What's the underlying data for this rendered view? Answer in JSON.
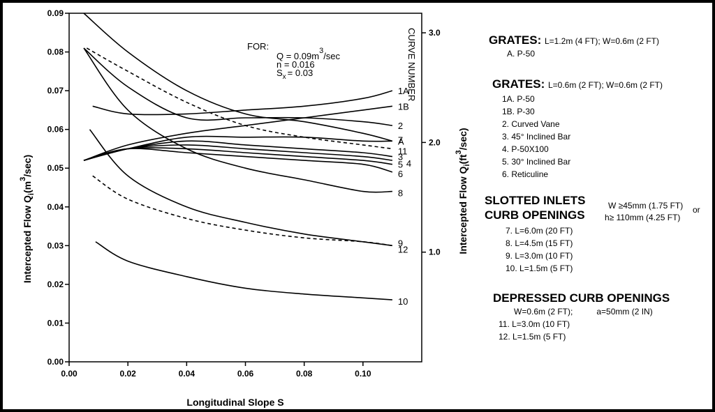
{
  "chart_data": {
    "type": "line",
    "xlabel": "Longitudinal Slope  S",
    "ylabel_left": "Intercepted Flow  Q_i (m^3/sec)",
    "ylabel_right": "Intercepted Flow  Q_i (ft^3/sec)",
    "xlim": [
      0,
      0.12
    ],
    "ylim": [
      0,
      0.09
    ],
    "x_ticks": [
      "0.00",
      "0.02",
      "0.04",
      "0.06",
      "0.08",
      "0.10"
    ],
    "y_ticks": [
      "0.00",
      "0.01",
      "0.02",
      "0.03",
      "0.04",
      "0.05",
      "0.06",
      "0.07",
      "0.08",
      "0.09"
    ],
    "y2_ticks": [
      {
        "label": "1.0",
        "value": 1.0
      },
      {
        "label": "2.0",
        "value": 2.0
      },
      {
        "label": "3.0",
        "value": 3.0
      }
    ],
    "curve_number_heading": "CURVE NUMBER",
    "for_note": {
      "heading": "FOR:",
      "q_line": "Q = 0.09m",
      "q_sup": "3",
      "q_unit": "/sec",
      "n_line": "n = 0.016",
      "s_main": "S",
      "s_sub": "x",
      "s_val": "= 0.03"
    },
    "series": [
      {
        "name": "A",
        "label": "A",
        "dashed": false,
        "x": [
          0.005,
          0.02,
          0.04,
          0.06,
          0.08,
          0.1,
          0.11
        ],
        "y": [
          0.09,
          0.08,
          0.07,
          0.064,
          0.062,
          0.059,
          0.057
        ]
      },
      {
        "name": "1A",
        "label": "1A",
        "dashed": false,
        "x": [
          0.008,
          0.02,
          0.04,
          0.06,
          0.08,
          0.1,
          0.11
        ],
        "y": [
          0.066,
          0.064,
          0.064,
          0.065,
          0.066,
          0.068,
          0.07
        ]
      },
      {
        "name": "1B",
        "label": "1B",
        "dashed": false,
        "x": [
          0.005,
          0.02,
          0.04,
          0.06,
          0.08,
          0.1,
          0.11
        ],
        "y": [
          0.052,
          0.056,
          0.059,
          0.061,
          0.063,
          0.065,
          0.066
        ]
      },
      {
        "name": "2",
        "label": "2",
        "dashed": false,
        "x": [
          0.005,
          0.02,
          0.04,
          0.06,
          0.08,
          0.1,
          0.11
        ],
        "y": [
          0.081,
          0.071,
          0.063,
          0.063,
          0.063,
          0.062,
          0.061
        ]
      },
      {
        "name": "11",
        "label": "11",
        "dashed": true,
        "x": [
          0.006,
          0.02,
          0.04,
          0.06,
          0.08,
          0.1,
          0.11
        ],
        "y": [
          0.081,
          0.075,
          0.067,
          0.061,
          0.058,
          0.056,
          0.055
        ]
      },
      {
        "name": "7",
        "label": "7",
        "dashed": false,
        "x": [
          0.005,
          0.02,
          0.04,
          0.06,
          0.08,
          0.1,
          0.11
        ],
        "y": [
          0.052,
          0.055,
          0.058,
          0.058,
          0.058,
          0.057,
          0.057
        ]
      },
      {
        "name": "3",
        "label": "3",
        "dashed": false,
        "x": [
          0.005,
          0.02,
          0.04,
          0.06,
          0.08,
          0.1,
          0.11
        ],
        "y": [
          0.052,
          0.055,
          0.057,
          0.056,
          0.055,
          0.054,
          0.053
        ]
      },
      {
        "name": "4",
        "label": "4",
        "dashed": false,
        "x": [
          0.005,
          0.02,
          0.04,
          0.06,
          0.08,
          0.1,
          0.11
        ],
        "y": [
          0.052,
          0.055,
          0.056,
          0.055,
          0.054,
          0.053,
          0.052
        ]
      },
      {
        "name": "5",
        "label": "5",
        "dashed": false,
        "x": [
          0.005,
          0.02,
          0.04,
          0.06,
          0.08,
          0.1,
          0.11
        ],
        "y": [
          0.052,
          0.055,
          0.055,
          0.054,
          0.053,
          0.052,
          0.051
        ]
      },
      {
        "name": "6",
        "label": "6",
        "dashed": false,
        "x": [
          0.005,
          0.02,
          0.04,
          0.06,
          0.08,
          0.1,
          0.11
        ],
        "y": [
          0.052,
          0.055,
          0.054,
          0.053,
          0.052,
          0.051,
          0.049
        ]
      },
      {
        "name": "8",
        "label": "8",
        "dashed": false,
        "x": [
          0.005,
          0.02,
          0.04,
          0.06,
          0.08,
          0.1,
          0.11
        ],
        "y": [
          0.081,
          0.065,
          0.055,
          0.05,
          0.047,
          0.044,
          0.044
        ]
      },
      {
        "name": "9",
        "label": "9",
        "dashed": false,
        "x": [
          0.007,
          0.02,
          0.04,
          0.06,
          0.08,
          0.1,
          0.11
        ],
        "y": [
          0.06,
          0.048,
          0.04,
          0.036,
          0.033,
          0.031,
          0.03
        ]
      },
      {
        "name": "12",
        "label": "12",
        "dashed": true,
        "x": [
          0.008,
          0.02,
          0.04,
          0.06,
          0.08,
          0.1,
          0.11
        ],
        "y": [
          0.048,
          0.042,
          0.037,
          0.034,
          0.032,
          0.031,
          0.03
        ]
      },
      {
        "name": "10",
        "label": "10",
        "dashed": false,
        "x": [
          0.009,
          0.02,
          0.04,
          0.06,
          0.08,
          0.1,
          0.11
        ],
        "y": [
          0.031,
          0.026,
          0.022,
          0.019,
          0.0175,
          0.0165,
          0.016
        ]
      }
    ]
  },
  "legend": {
    "grates1": {
      "title": "GRATES:",
      "spec": "L=1.2m (4 FT); W=0.6m (2 FT)",
      "items": [
        "A. P-50"
      ]
    },
    "grates2": {
      "title": "GRATES:",
      "spec": "L=0.6m (2 FT); W=0.6m (2 FT)",
      "items": [
        "1A. P-50",
        "1B. P-30",
        "2. Curved Vane",
        "3. 45° Inclined Bar",
        "4. P-50X100",
        "5. 30° Inclined Bar",
        "6. Reticuline"
      ]
    },
    "slotted": {
      "title1": "SLOTTED INLETS",
      "title2": "CURB OPENINGS",
      "spec1": "W ≥45mm (1.75 FT)",
      "or": "or",
      "spec2": "h≥ 110mm (4.25 FT)",
      "items": [
        "7. L=6.0m (20 FT)",
        "8. L=4.5m (15 FT)",
        "9. L=3.0m (10 FT)",
        "10. L=1.5m (5 FT)"
      ]
    },
    "depressed": {
      "title": "DEPRESSED CURB OPENINGS",
      "spec_w": "W=0.6m (2 FT);",
      "spec_a": "a=50mm (2 IN)",
      "items": [
        "11. L=3.0m (10 FT)",
        "12. L=1.5m (5 FT)"
      ]
    }
  }
}
